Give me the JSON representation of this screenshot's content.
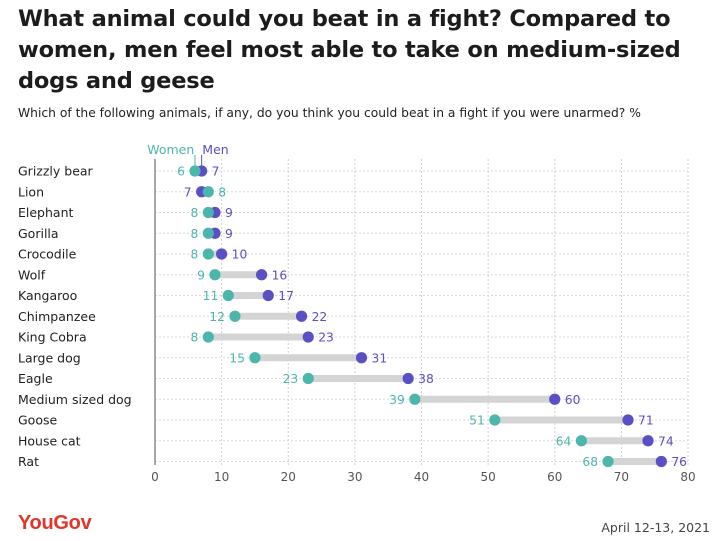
{
  "title": "What animal could you beat in a fight? Compared to women, men feel most able to take on medium-sized dogs and geese",
  "subtitle": "Which of the following animals, if any, do you think you could beat in a fight if you were unarmed? %",
  "brand": "YouGov",
  "date": "April 12-13, 2021",
  "colors": {
    "women": "#4db6ac",
    "men": "#5b4fc4",
    "connector": "#d4d4d4",
    "brand": "#e0372a"
  },
  "chart_data": {
    "type": "dumbbell",
    "legend": [
      "Women",
      "Men"
    ],
    "xlim": [
      0,
      80
    ],
    "xticks": [
      0,
      10,
      20,
      30,
      40,
      50,
      60,
      70,
      80
    ],
    "grid": true,
    "categories": [
      "Grizzly bear",
      "Lion",
      "Elephant",
      "Gorilla",
      "Crocodile",
      "Wolf",
      "Kangaroo",
      "Chimpanzee",
      "King Cobra",
      "Large dog",
      "Eagle",
      "Medium sized dog",
      "Goose",
      "House cat",
      "Rat"
    ],
    "series": [
      {
        "name": "Women",
        "values": [
          6,
          8,
          8,
          8,
          8,
          9,
          11,
          12,
          8,
          15,
          23,
          39,
          51,
          64,
          68
        ]
      },
      {
        "name": "Men",
        "values": [
          7,
          7,
          9,
          9,
          10,
          16,
          17,
          22,
          23,
          31,
          38,
          60,
          71,
          74,
          76
        ]
      }
    ]
  }
}
